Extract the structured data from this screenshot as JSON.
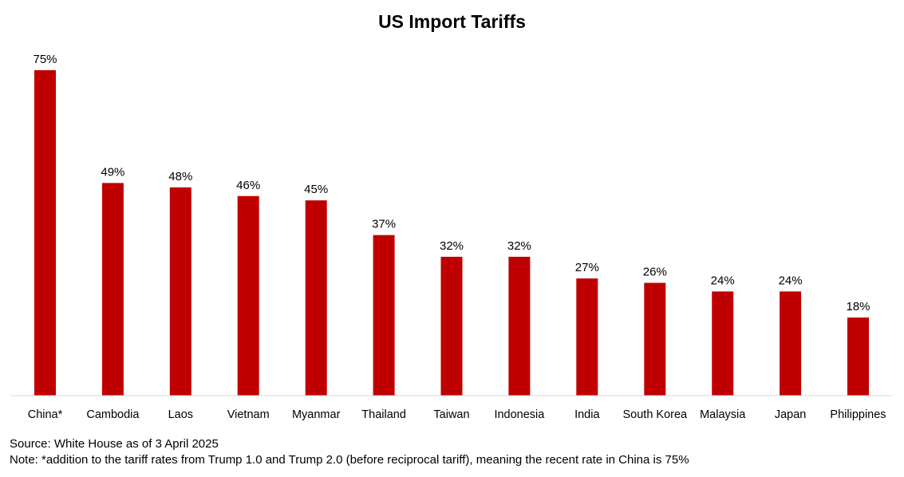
{
  "chart_data": {
    "type": "bar",
    "title": "US Import Tariffs",
    "xlabel": "",
    "ylabel": "",
    "categories": [
      "China*",
      "Cambodia",
      "Laos",
      "Vietnam",
      "Myanmar",
      "Thailand",
      "Taiwan",
      "Indonesia",
      "India",
      "South Korea",
      "Malaysia",
      "Japan",
      "Philippines"
    ],
    "values": [
      75,
      49,
      48,
      46,
      45,
      37,
      32,
      32,
      27,
      26,
      24,
      24,
      18
    ],
    "value_labels": [
      "75%",
      "49%",
      "48%",
      "46%",
      "45%",
      "37%",
      "32%",
      "32%",
      "27%",
      "26%",
      "24%",
      "24%",
      "18%"
    ],
    "ylim": [
      0,
      75
    ],
    "grid": false,
    "legend": "none",
    "bar_color": "#C00000"
  },
  "footnotes": {
    "source": "Source: White House as of 3 April 2025",
    "note": "Note: *addition to the tariff rates from Trump 1.0 and Trump 2.0 (before reciprocal tariff), meaning the recent rate in China is 75%"
  }
}
